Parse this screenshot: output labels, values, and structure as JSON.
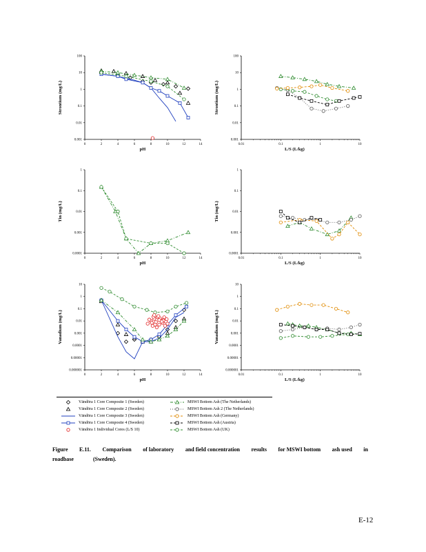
{
  "chart_data": [
    {
      "type": "scatter",
      "panel": "strontium-ph",
      "xlabel": "pH",
      "ylabel": "Strontium (mg/L)",
      "xscale": "linear",
      "yscale": "log",
      "xlim": [
        0,
        14
      ],
      "ylim": [
        0.001,
        100
      ],
      "xticks": [
        "0",
        "2",
        "4",
        "6",
        "8",
        "10",
        "12",
        "14"
      ],
      "yticks": [
        "0.001",
        "0.01",
        "0.1",
        "1",
        "10",
        "100"
      ],
      "series": [
        {
          "key": "s1",
          "x": [
            2,
            4,
            5.5,
            7,
            8,
            9.5,
            11,
            12.5
          ],
          "y": [
            9,
            7,
            5,
            3,
            2.5,
            2,
            1.5,
            1.1
          ]
        },
        {
          "key": "s2",
          "x": [
            2,
            3.5,
            5,
            7,
            8.5,
            10,
            11.5,
            12.5
          ],
          "y": [
            13,
            12,
            9,
            6,
            3.5,
            2.5,
            0.6,
            0.15
          ]
        },
        {
          "key": "s3",
          "x": [
            2,
            4,
            5,
            6,
            7,
            8,
            9,
            10,
            11
          ],
          "y": [
            8,
            6,
            4.5,
            3.5,
            2.5,
            1.2,
            0.3,
            0.08,
            0.012
          ]
        },
        {
          "key": "s4",
          "x": [
            2,
            4,
            5,
            7,
            8,
            9,
            10,
            11.5,
            12.5
          ],
          "y": [
            8,
            6,
            4,
            2.5,
            1.2,
            0.8,
            0.4,
            0.15,
            0.02
          ]
        },
        {
          "key": "s6",
          "x": [
            2,
            4,
            6,
            8,
            10,
            12
          ],
          "y": [
            12,
            10,
            7,
            5,
            4,
            1.2
          ]
        },
        {
          "key": "s8",
          "x": [
            2,
            5,
            8,
            10,
            12
          ],
          "y": [
            10,
            6,
            3,
            1.5,
            0.25
          ]
        },
        {
          "key": "s5",
          "x": [
            8.2
          ],
          "y": [
            0.0012
          ]
        }
      ]
    },
    {
      "type": "line",
      "panel": "strontium-ls",
      "xlabel": "L/S (L/kg)",
      "ylabel": "Strontium (mg/L)",
      "xscale": "log",
      "yscale": "log",
      "xlim": [
        0.01,
        10
      ],
      "ylim": [
        0.001,
        100
      ],
      "xticks": [
        "0.01",
        "0.1",
        "1",
        "10"
      ],
      "yticks": [
        "0.001",
        "0.01",
        "0.1",
        "1",
        "10",
        "100"
      ],
      "series": [
        {
          "key": "s6",
          "x": [
            0.1,
            0.2,
            0.4,
            0.8,
            1.5,
            3,
            7
          ],
          "y": [
            6,
            5,
            4,
            3,
            2,
            1.5,
            1.2
          ]
        },
        {
          "key": "s7",
          "x": [
            0.08,
            0.15,
            0.3,
            0.6,
            1.2,
            2.5,
            5
          ],
          "y": [
            1.2,
            0.9,
            0.3,
            0.07,
            0.05,
            0.07,
            0.1
          ]
        },
        {
          "key": "s8",
          "x": [
            0.1,
            0.2,
            0.4,
            0.8,
            1.5,
            2.5
          ],
          "y": [
            1,
            0.8,
            0.7,
            0.4,
            0.25,
            0.2
          ]
        },
        {
          "key": "s9",
          "x": [
            0.08,
            0.15,
            0.3,
            0.6,
            1,
            2,
            5
          ],
          "y": [
            1.1,
            1.2,
            1.3,
            1.5,
            1.8,
            1.2,
            0.8
          ]
        },
        {
          "key": "s10",
          "x": [
            0.15,
            0.3,
            0.6,
            1.5,
            3,
            7,
            10
          ],
          "y": [
            0.5,
            0.3,
            0.2,
            0.12,
            0.2,
            0.3,
            0.35
          ]
        }
      ]
    },
    {
      "type": "line",
      "panel": "tin-ph",
      "xlabel": "pH",
      "ylabel": "Tin (mg/L)",
      "xscale": "linear",
      "yscale": "log",
      "xlim": [
        0,
        14
      ],
      "ylim": [
        0.0001,
        1
      ],
      "xticks": [
        "0",
        "2",
        "4",
        "6",
        "8",
        "10",
        "12",
        "14"
      ],
      "yticks": [
        "0.0001",
        "0.001",
        "0.01",
        "0.1",
        "1"
      ],
      "series": [
        {
          "key": "s6",
          "x": [
            2,
            3.7,
            5,
            6.5,
            8,
            10,
            12.5
          ],
          "y": [
            0.15,
            0.01,
            0.0005,
            0.0001,
            0.0003,
            0.0004,
            0.001
          ]
        },
        {
          "key": "s8",
          "x": [
            2,
            4,
            5,
            8,
            10,
            12
          ],
          "y": [
            0.15,
            0.01,
            0.0005,
            0.0003,
            0.0003,
            0.0001
          ]
        }
      ]
    },
    {
      "type": "line",
      "panel": "tin-ls",
      "xlabel": "L/S (L/kg)",
      "ylabel": "Tin (mg/L)",
      "xscale": "log",
      "yscale": "log",
      "xlim": [
        0.01,
        10
      ],
      "ylim": [
        0.0001,
        1
      ],
      "xticks": [
        "0.01",
        "0.1",
        "1",
        "10"
      ],
      "yticks": [
        "0.0001",
        "0.001",
        "0.01",
        "0.1",
        "1"
      ],
      "series": [
        {
          "key": "s6",
          "x": [
            0.15,
            0.3,
            0.6,
            1.5,
            3,
            6
          ],
          "y": [
            0.002,
            0.003,
            0.0015,
            0.0008,
            0.0012,
            0.005
          ]
        },
        {
          "key": "s7",
          "x": [
            0.1,
            0.2,
            0.4,
            0.8,
            1.5,
            3,
            6,
            10
          ],
          "y": [
            0.006,
            0.005,
            0.004,
            0.004,
            0.003,
            0.003,
            0.004,
            0.006
          ]
        },
        {
          "key": "s9",
          "x": [
            0.1,
            0.3,
            0.8,
            2,
            3,
            5,
            10
          ],
          "y": [
            0.003,
            0.004,
            0.0035,
            0.0005,
            0.0008,
            0.003,
            0.0008
          ]
        },
        {
          "key": "s10",
          "x": [
            0.1,
            0.15,
            0.3,
            0.6,
            1
          ],
          "y": [
            0.01,
            0.005,
            0.003,
            0.005,
            0.004
          ]
        }
      ]
    },
    {
      "type": "line",
      "panel": "vanadium-ph",
      "xlabel": "pH",
      "ylabel": "Vanadium (mg/L)",
      "xscale": "linear",
      "yscale": "log",
      "xlim": [
        0,
        14
      ],
      "ylim": [
        1e-06,
        10
      ],
      "xticks": [
        "0",
        "2",
        "4",
        "6",
        "8",
        "10",
        "12",
        "14"
      ],
      "yticks": [
        "0.000001",
        "0.00001",
        "0.0001",
        "0.001",
        "0.01",
        "0.1",
        "1",
        "10"
      ],
      "series": [
        {
          "key": "s1",
          "x": [
            2,
            4,
            5,
            6,
            7,
            8,
            9,
            10,
            11,
            12
          ],
          "y": [
            0.5,
            0.001,
            0.0002,
            0.0003,
            0.0002,
            0.0003,
            0.0005,
            0.002,
            0.01,
            0.08
          ]
        },
        {
          "key": "s2",
          "x": [
            2,
            4,
            5,
            6,
            7,
            8,
            9,
            10,
            11,
            12
          ],
          "y": [
            0.4,
            0.005,
            0.0008,
            0.0004,
            0.0002,
            0.0002,
            0.0003,
            0.001,
            0.003,
            0.015
          ]
        },
        {
          "key": "s3",
          "x": [
            2,
            4,
            5,
            6,
            7,
            8,
            9,
            10,
            11,
            12
          ],
          "y": [
            0.5,
            0.0005,
            3e-05,
            8e-06,
            0.0002,
            0.0002,
            0.0004,
            0.002,
            0.02,
            0.05
          ]
        },
        {
          "key": "s4",
          "x": [
            2,
            4,
            5,
            6,
            7,
            8,
            9,
            10,
            11,
            12.3
          ],
          "y": [
            0.5,
            0.01,
            0.002,
            0.0005,
            0.0002,
            0.0003,
            0.0008,
            0.005,
            0.03,
            0.15
          ]
        },
        {
          "key": "s6",
          "x": [
            2,
            4,
            6,
            7,
            8,
            9,
            10,
            11,
            12
          ],
          "y": [
            0.5,
            0.05,
            0.002,
            0.0003,
            0.0002,
            0.0003,
            0.0006,
            0.002,
            0.01
          ]
        },
        {
          "key": "s8",
          "x": [
            2,
            3,
            4.5,
            6,
            7.5,
            8.5,
            10,
            11,
            12.3
          ],
          "y": [
            5,
            2.5,
            0.6,
            0.15,
            0.08,
            0.05,
            0.06,
            0.15,
            0.3
          ]
        },
        {
          "key": "s5",
          "x": [
            7.6,
            8,
            8.2,
            8.4,
            8.6,
            8.8,
            9,
            9.2,
            9.4,
            9.6,
            9.8,
            10,
            7.8,
            8.3,
            8.7,
            9.1,
            9.5,
            9.9,
            8.1,
            8.5,
            8.9,
            9.3,
            9.7,
            8.4,
            9,
            9.6
          ],
          "y": [
            0.006,
            0.01,
            0.004,
            0.015,
            0.008,
            0.02,
            0.005,
            0.012,
            0.007,
            0.018,
            0.009,
            0.006,
            0.013,
            0.022,
            0.003,
            0.016,
            0.011,
            0.014,
            0.007,
            0.005,
            0.025,
            0.009,
            0.004,
            0.03,
            0.012,
            0.02
          ]
        }
      ]
    },
    {
      "type": "line",
      "panel": "vanadium-ls",
      "xlabel": "L/S (L/kg)",
      "ylabel": "Vanadium (mg/L)",
      "xscale": "log",
      "yscale": "log",
      "xlim": [
        0.01,
        10
      ],
      "ylim": [
        1e-06,
        10
      ],
      "xticks": [
        "0.01",
        "0.1",
        "1",
        "10"
      ],
      "yticks": [
        "0.000001",
        "0.00001",
        "0.0001",
        "0.001",
        "0.01",
        "0.1",
        "1",
        "10"
      ],
      "series": [
        {
          "key": "s6",
          "x": [
            0.15,
            0.2,
            0.3,
            0.5,
            0.8,
            1.5,
            3,
            6,
            10
          ],
          "y": [
            0.006,
            0.005,
            0.004,
            0.004,
            0.003,
            0.002,
            0.001,
            0.001,
            0.0008
          ]
        },
        {
          "key": "s7",
          "x": [
            0.1,
            0.2,
            0.4,
            0.8,
            1.5,
            3,
            6,
            10
          ],
          "y": [
            0.0015,
            0.002,
            0.003,
            0.002,
            0.0025,
            0.002,
            0.003,
            0.005
          ]
        },
        {
          "key": "s8",
          "x": [
            0.1,
            0.2,
            0.5,
            1,
            2,
            5
          ],
          "y": [
            0.0004,
            0.0006,
            0.0005,
            0.0005,
            0.0006,
            0.0008
          ]
        },
        {
          "key": "s9",
          "x": [
            0.08,
            0.15,
            0.3,
            0.6,
            1.2,
            2.5,
            5
          ],
          "y": [
            0.08,
            0.15,
            0.25,
            0.2,
            0.2,
            0.1,
            0.05
          ]
        },
        {
          "key": "s10",
          "x": [
            0.1,
            0.2,
            0.4,
            0.8,
            1.5,
            3,
            6,
            10
          ],
          "y": [
            0.005,
            0.004,
            0.003,
            0.002,
            0.002,
            0.001,
            0.0008,
            0.0009
          ]
        }
      ]
    }
  ],
  "series_styles": {
    "s1": {
      "color": "#000000",
      "marker": "diamond",
      "dash": "none"
    },
    "s2": {
      "color": "#000000",
      "marker": "triangle",
      "dash": "none"
    },
    "s3": {
      "color": "#1f3fbf",
      "marker": "none",
      "dash": "solid"
    },
    "s4": {
      "color": "#1f3fbf",
      "marker": "square",
      "dash": "solid"
    },
    "s5": {
      "color": "#e02020",
      "marker": "circle",
      "dash": "none"
    },
    "s6": {
      "color": "#2e8b2e",
      "marker": "triangle",
      "dash": "dashdot"
    },
    "s7": {
      "color": "#555555",
      "marker": "circle",
      "dash": "dotted"
    },
    "s8": {
      "color": "#2e8b2e",
      "marker": "circle",
      "dash": "dashed"
    },
    "s9": {
      "color": "#e08a00",
      "marker": "circle",
      "dash": "dashed"
    },
    "s10": {
      "color": "#000000",
      "marker": "square",
      "dash": "dashed"
    }
  },
  "legend": {
    "left": [
      {
        "key": "s1",
        "label": "Vändöra 1 Core Composite 1 (Sweden)"
      },
      {
        "key": "s2",
        "label": "Vändöra 1 Core Composite 2 (Sweden)"
      },
      {
        "key": "s3",
        "label": "Vändöra 1 Core Composite 3 (Sweden)"
      },
      {
        "key": "s4",
        "label": "Vändöra 1 Core Composite 4 (Sweden)"
      },
      {
        "key": "s5",
        "label": "Vändöra 1 Individual Cores (L/S 10)"
      }
    ],
    "right": [
      {
        "key": "s6",
        "label": "MSWI Bottom Ash (The Netherlands)"
      },
      {
        "key": "s7",
        "label": "MSWI Bottom Ash 2 (The Netherlands)"
      },
      {
        "key": "s9",
        "label": "MSWI Bottom Ash (Germany)"
      },
      {
        "key": "s10",
        "label": "MSWI Bottom Ash (Austria)"
      },
      {
        "key": "s8",
        "label": "MSWI Bottom Ash (UK)"
      }
    ]
  },
  "caption": {
    "line1": [
      "Figure",
      "E.11.",
      "Comparison",
      "of laboratory",
      "and field concentration",
      "results",
      "for MSWI bottom",
      "ash used",
      "in"
    ],
    "line2": [
      "roadbase",
      "(Sweden)."
    ]
  },
  "page_number": "E-12"
}
